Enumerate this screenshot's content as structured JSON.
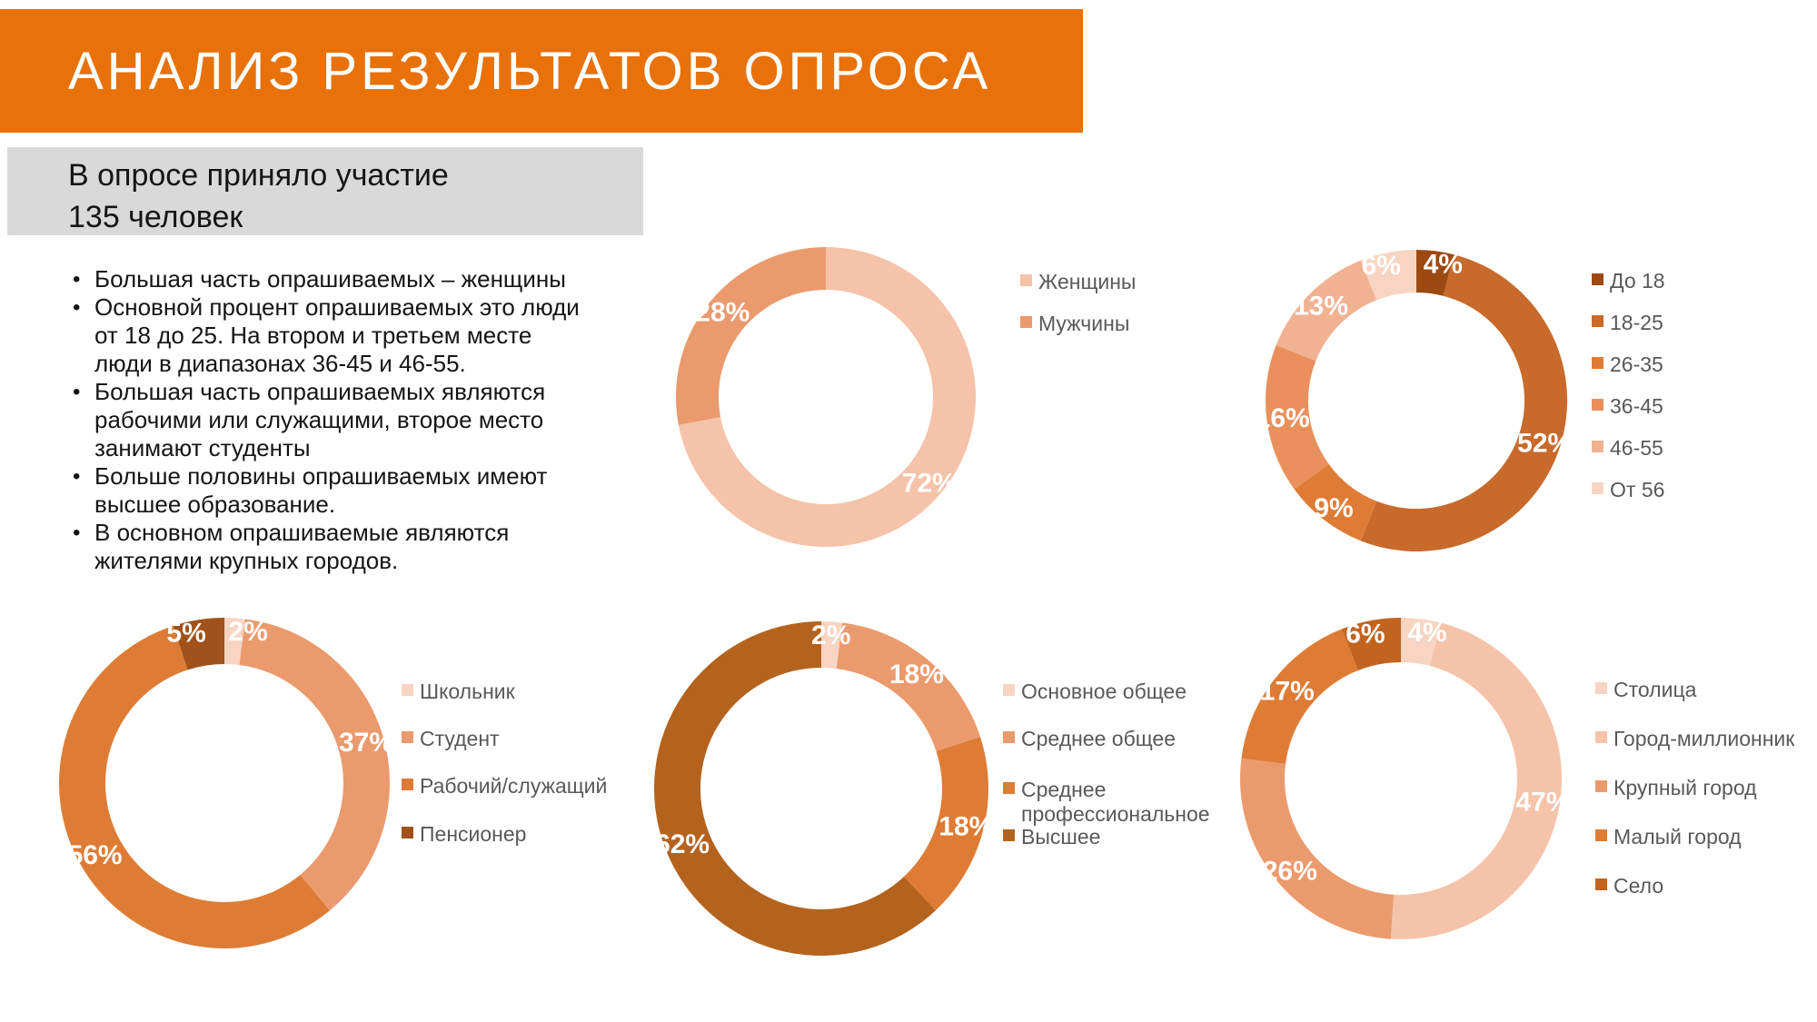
{
  "slide": {
    "title": "АНАЛИЗ РЕЗУЛЬТАТОВ ОПРОСА",
    "participants": {
      "line1": "В опросе приняло участие",
      "line2": "135 человек"
    },
    "bullets": [
      "Большая часть опрашиваемых – женщины",
      "Основной процент опрашиваемых это люди от 18 до 25. На втором и третьем месте люди в диапазонах 36-45 и 46-55.",
      "Большая часть опрашиваемых являются рабочими или служащими, второе место занимают студенты",
      "Больше половины опрашиваемых имеют высшее образование.",
      "В основном опрашиваемые являются жителями крупных городов."
    ]
  },
  "colors": {
    "header_bg": "#E8710A",
    "subtitle_bg": "#D9D9D9",
    "title_text": "#FFFFFF",
    "body_text": "#151515",
    "legend_text": "#595959",
    "data_label_text": "#FFFFFF"
  },
  "chart_data": [
    {
      "type": "pie",
      "subtype": "donut",
      "name": "gender",
      "unit": "%",
      "legend_position": "right",
      "start_angle": "top-clockwise",
      "labels": [
        "Женщины",
        "Мужчины"
      ],
      "values": [
        72,
        28
      ],
      "data_labels": [
        "72%",
        "28%"
      ],
      "colors": [
        "#F5C3A9",
        "#EB9A6D"
      ]
    },
    {
      "type": "pie",
      "subtype": "donut",
      "name": "age",
      "unit": "%",
      "legend_position": "right",
      "start_angle": "top-clockwise",
      "labels": [
        "До 18",
        "18-25",
        "26-35",
        "36-45",
        "46-55",
        "От 56"
      ],
      "values": [
        4,
        52,
        9,
        16,
        13,
        6
      ],
      "data_labels": [
        "4%",
        "52%",
        "9%",
        "16%",
        "13%",
        "6%"
      ],
      "colors": [
        "#9C4A12",
        "#C76A2B",
        "#DE7C35",
        "#E9905C",
        "#F1B292",
        "#F8D5C2"
      ]
    },
    {
      "type": "pie",
      "subtype": "donut",
      "name": "occupation",
      "unit": "%",
      "legend_position": "right",
      "start_angle": "top-clockwise",
      "labels": [
        "Школьник",
        "Студент",
        "Рабочий/служащий",
        "Пенсионер"
      ],
      "values": [
        2,
        37,
        56,
        5
      ],
      "data_labels": [
        "2%",
        "37%",
        "56%",
        "5%"
      ],
      "colors": [
        "#F8D5C2",
        "#EB9A6D",
        "#DE7C35",
        "#A0521A"
      ]
    },
    {
      "type": "pie",
      "subtype": "donut",
      "name": "education",
      "unit": "%",
      "legend_position": "right",
      "start_angle": "top-clockwise",
      "labels": [
        "Основное общее",
        "Среднее общее",
        "Среднее профессиональное",
        "Высшее"
      ],
      "values": [
        2,
        18,
        18,
        62
      ],
      "data_labels": [
        "2%",
        "18%",
        "18%",
        "62%"
      ],
      "colors": [
        "#F8D5C2",
        "#EB9A6D",
        "#DE7C35",
        "#B4631F"
      ]
    },
    {
      "type": "pie",
      "subtype": "donut",
      "name": "settlement",
      "unit": "%",
      "legend_position": "right",
      "start_angle": "top-clockwise",
      "labels": [
        "Столица",
        "Город-миллионник",
        "Крупный город",
        "Малый город",
        "Село"
      ],
      "values": [
        4,
        47,
        26,
        17,
        6
      ],
      "data_labels": [
        "4%",
        "47%",
        "26%",
        "17%",
        "6%"
      ],
      "colors": [
        "#F8D5C2",
        "#F5C3A9",
        "#EB9A6D",
        "#DE7C35",
        "#C2641F"
      ]
    }
  ]
}
